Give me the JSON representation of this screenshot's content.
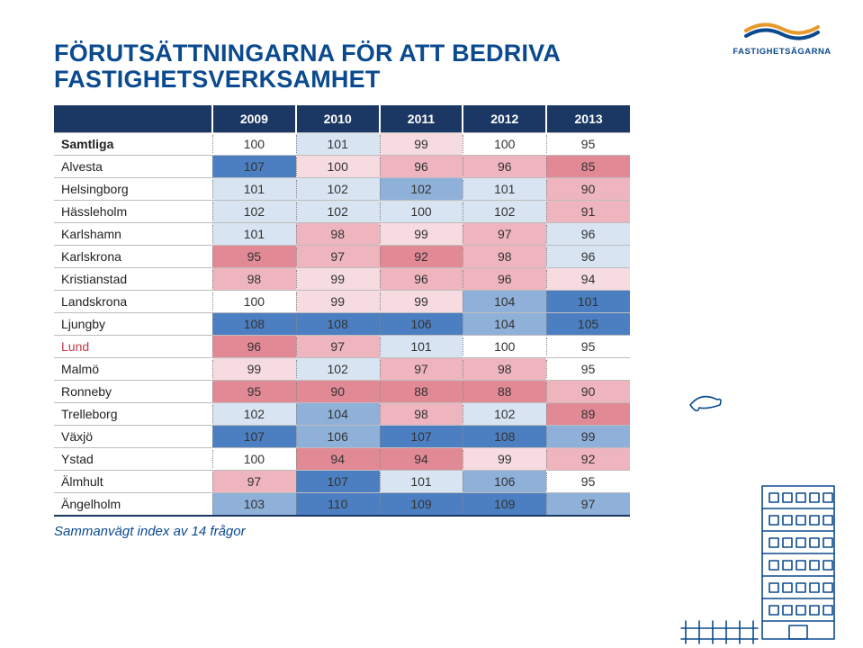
{
  "title": "FÖRUTSÄTTNINGARNA FÖR ATT BEDRIVA FASTIGHETSVERKSAMHET",
  "logo_text": "FASTIGHETSÄGARNA",
  "logo_colors": {
    "top": "#e79a2b",
    "mid": "#ffffff",
    "bottom": "#0b4a8e",
    "stroke": "#0b4a8e"
  },
  "table": {
    "header_bg": "#1b3764",
    "header_fg": "#ffffff",
    "years": [
      "2009",
      "2010",
      "2011",
      "2012",
      "2013"
    ],
    "label_col_width": 160,
    "cell_font_size": 14,
    "palette": {
      "deep_blue": "#4c7fc1",
      "blue": "#8fb0d9",
      "pale_blue": "#d8e4f2",
      "white": "#ffffff",
      "pale_red": "#f6dbe0",
      "red": "#eeb5bf",
      "deep_red": "#e28996"
    },
    "rows": [
      {
        "label": "Samtliga",
        "bold": true,
        "cells": [
          {
            "v": "100",
            "c": "white"
          },
          {
            "v": "101",
            "c": "pale_blue"
          },
          {
            "v": "99",
            "c": "pale_red"
          },
          {
            "v": "100",
            "c": "white"
          },
          {
            "v": "95",
            "c": "white"
          }
        ]
      },
      {
        "label": "Alvesta",
        "cells": [
          {
            "v": "107",
            "c": "deep_blue"
          },
          {
            "v": "100",
            "c": "pale_red"
          },
          {
            "v": "96",
            "c": "red"
          },
          {
            "v": "96",
            "c": "red"
          },
          {
            "v": "85",
            "c": "deep_red"
          }
        ]
      },
      {
        "label": "Helsingborg",
        "cells": [
          {
            "v": "101",
            "c": "pale_blue"
          },
          {
            "v": "102",
            "c": "pale_blue"
          },
          {
            "v": "102",
            "c": "blue"
          },
          {
            "v": "101",
            "c": "pale_blue"
          },
          {
            "v": "90",
            "c": "red"
          }
        ]
      },
      {
        "label": "Hässleholm",
        "cells": [
          {
            "v": "102",
            "c": "pale_blue"
          },
          {
            "v": "102",
            "c": "pale_blue"
          },
          {
            "v": "100",
            "c": "pale_blue"
          },
          {
            "v": "102",
            "c": "pale_blue"
          },
          {
            "v": "91",
            "c": "red"
          }
        ]
      },
      {
        "label": "Karlshamn",
        "cells": [
          {
            "v": "101",
            "c": "pale_blue"
          },
          {
            "v": "98",
            "c": "red"
          },
          {
            "v": "99",
            "c": "pale_red"
          },
          {
            "v": "97",
            "c": "red"
          },
          {
            "v": "96",
            "c": "pale_blue"
          }
        ]
      },
      {
        "label": "Karlskrona",
        "cells": [
          {
            "v": "95",
            "c": "deep_red"
          },
          {
            "v": "97",
            "c": "red"
          },
          {
            "v": "92",
            "c": "deep_red"
          },
          {
            "v": "98",
            "c": "red"
          },
          {
            "v": "96",
            "c": "pale_blue"
          }
        ]
      },
      {
        "label": "Kristianstad",
        "cells": [
          {
            "v": "98",
            "c": "red"
          },
          {
            "v": "99",
            "c": "pale_red"
          },
          {
            "v": "96",
            "c": "red"
          },
          {
            "v": "96",
            "c": "red"
          },
          {
            "v": "94",
            "c": "pale_red"
          }
        ]
      },
      {
        "label": "Landskrona",
        "cells": [
          {
            "v": "100",
            "c": "white"
          },
          {
            "v": "99",
            "c": "pale_red"
          },
          {
            "v": "99",
            "c": "pale_red"
          },
          {
            "v": "104",
            "c": "blue"
          },
          {
            "v": "101",
            "c": "deep_blue"
          }
        ]
      },
      {
        "label": "Ljungby",
        "cells": [
          {
            "v": "108",
            "c": "deep_blue"
          },
          {
            "v": "108",
            "c": "deep_blue"
          },
          {
            "v": "106",
            "c": "deep_blue"
          },
          {
            "v": "104",
            "c": "blue"
          },
          {
            "v": "105",
            "c": "deep_blue"
          }
        ]
      },
      {
        "label": "Lund",
        "red_label": true,
        "cells": [
          {
            "v": "96",
            "c": "deep_red"
          },
          {
            "v": "97",
            "c": "red"
          },
          {
            "v": "101",
            "c": "pale_blue"
          },
          {
            "v": "100",
            "c": "white"
          },
          {
            "v": "95",
            "c": "white"
          }
        ]
      },
      {
        "label": "Malmö",
        "cells": [
          {
            "v": "99",
            "c": "pale_red"
          },
          {
            "v": "102",
            "c": "pale_blue"
          },
          {
            "v": "97",
            "c": "red"
          },
          {
            "v": "98",
            "c": "red"
          },
          {
            "v": "95",
            "c": "white"
          }
        ]
      },
      {
        "label": "Ronneby",
        "cells": [
          {
            "v": "95",
            "c": "deep_red"
          },
          {
            "v": "90",
            "c": "deep_red"
          },
          {
            "v": "88",
            "c": "deep_red"
          },
          {
            "v": "88",
            "c": "deep_red"
          },
          {
            "v": "90",
            "c": "red"
          }
        ]
      },
      {
        "label": "Trelleborg",
        "cells": [
          {
            "v": "102",
            "c": "pale_blue"
          },
          {
            "v": "104",
            "c": "blue"
          },
          {
            "v": "98",
            "c": "red"
          },
          {
            "v": "102",
            "c": "pale_blue"
          },
          {
            "v": "89",
            "c": "deep_red"
          }
        ]
      },
      {
        "label": "Växjö",
        "cells": [
          {
            "v": "107",
            "c": "deep_blue"
          },
          {
            "v": "106",
            "c": "blue"
          },
          {
            "v": "107",
            "c": "deep_blue"
          },
          {
            "v": "108",
            "c": "deep_blue"
          },
          {
            "v": "99",
            "c": "blue"
          }
        ]
      },
      {
        "label": "Ystad",
        "cells": [
          {
            "v": "100",
            "c": "white"
          },
          {
            "v": "94",
            "c": "deep_red"
          },
          {
            "v": "94",
            "c": "deep_red"
          },
          {
            "v": "99",
            "c": "pale_red"
          },
          {
            "v": "92",
            "c": "red"
          }
        ]
      },
      {
        "label": "Älmhult",
        "cells": [
          {
            "v": "97",
            "c": "red"
          },
          {
            "v": "107",
            "c": "deep_blue"
          },
          {
            "v": "101",
            "c": "pale_blue"
          },
          {
            "v": "106",
            "c": "blue"
          },
          {
            "v": "95",
            "c": "white"
          }
        ]
      },
      {
        "label": "Ängelholm",
        "cells": [
          {
            "v": "103",
            "c": "blue"
          },
          {
            "v": "110",
            "c": "deep_blue"
          },
          {
            "v": "109",
            "c": "deep_blue"
          },
          {
            "v": "109",
            "c": "deep_blue"
          },
          {
            "v": "97",
            "c": "blue"
          }
        ]
      }
    ]
  },
  "footnote": "Sammanvägt index av 14 frågor",
  "doodle_color": "#0b4a8e"
}
